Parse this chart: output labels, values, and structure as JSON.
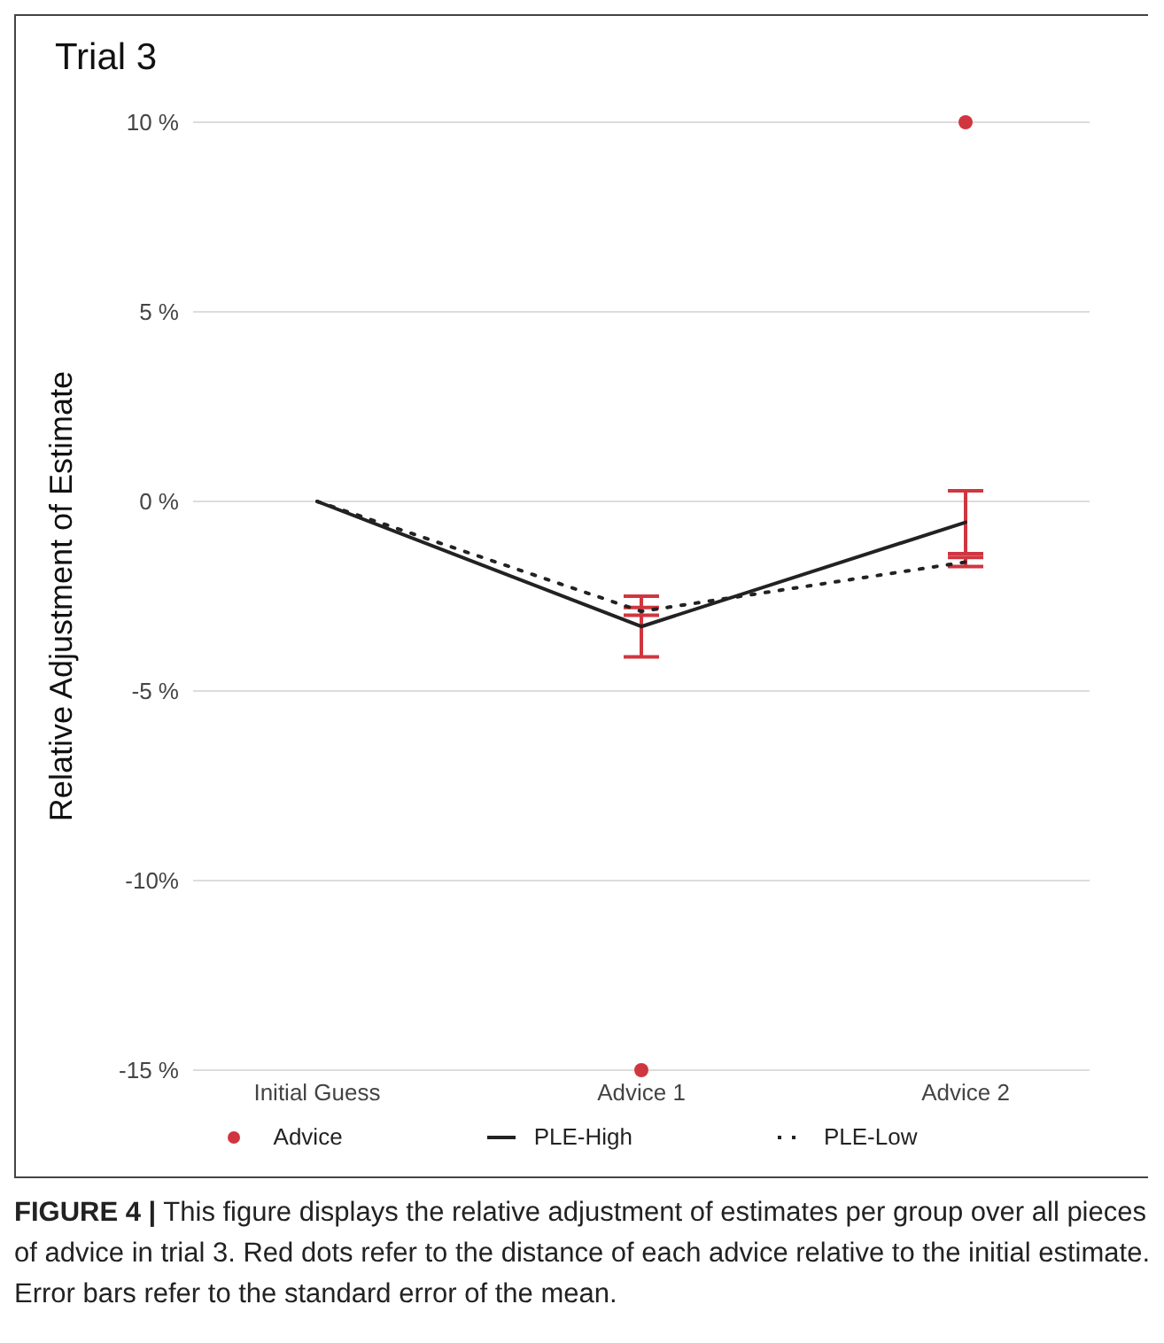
{
  "chart_data": {
    "type": "line",
    "title": "Trial 3",
    "ylabel": "Relative Adjustment of Estimate",
    "categories": [
      "Initial Guess",
      "Advice 1",
      "Advice 2"
    ],
    "series": [
      {
        "name": "Advice",
        "type": "scatter",
        "color": "#d0363f",
        "marker": "circle",
        "x": [
          "Advice 1",
          "Advice 2"
        ],
        "values": [
          -15,
          10
        ]
      },
      {
        "name": "PLE-High",
        "type": "line",
        "color": "#222222",
        "line_style": "solid",
        "marker": "none",
        "values": [
          0,
          -3.3,
          -0.55
        ],
        "errors": [
          0,
          0.8,
          0.83
        ]
      },
      {
        "name": "PLE-Low",
        "type": "line",
        "color": "#222222",
        "line_style": "dotted",
        "marker": "none",
        "values": [
          0,
          -2.9,
          -1.6
        ],
        "errors": [
          0,
          0.1,
          0.12
        ]
      }
    ],
    "ylim": [
      -15,
      10
    ],
    "yticks": [
      {
        "value": 10,
        "label": "10 %"
      },
      {
        "value": 5,
        "label": "5 %"
      },
      {
        "value": 0,
        "label": "0 %"
      },
      {
        "value": -5,
        "label": "-5 %"
      },
      {
        "value": -10,
        "label": "-10%"
      },
      {
        "value": -15,
        "label": "-15 %"
      }
    ],
    "grid": "y",
    "legend": "bottom",
    "annotations": [
      "FIGURE 4 | This figure displays the relative adjustment of estimates per group over all pieces of advice in trial 3. Red dots refer to the distance of each advice relative to the initial estimate. Error bars refer to the standard error of the mean."
    ]
  }
}
